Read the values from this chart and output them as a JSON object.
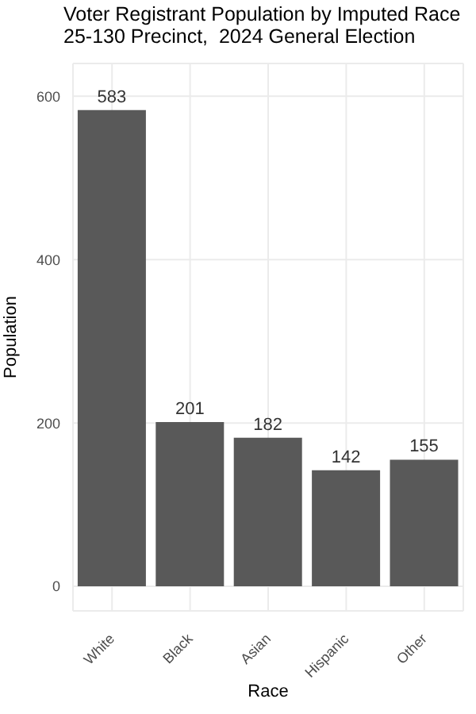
{
  "chart_data": {
    "type": "bar",
    "title": "Voter Registrant Population by Imputed Race",
    "subtitle": "25-130 Precinct,  2024 General Election",
    "xlabel": "Race",
    "ylabel": "Population",
    "categories": [
      "White",
      "Black",
      "Asian",
      "Hispanic",
      "Other"
    ],
    "values": [
      583,
      201,
      182,
      142,
      155
    ],
    "color": "#595959",
    "ylim": [
      -30,
      640
    ],
    "yticks": [
      0,
      200,
      400,
      600
    ],
    "grid": true,
    "data_labels": true
  }
}
